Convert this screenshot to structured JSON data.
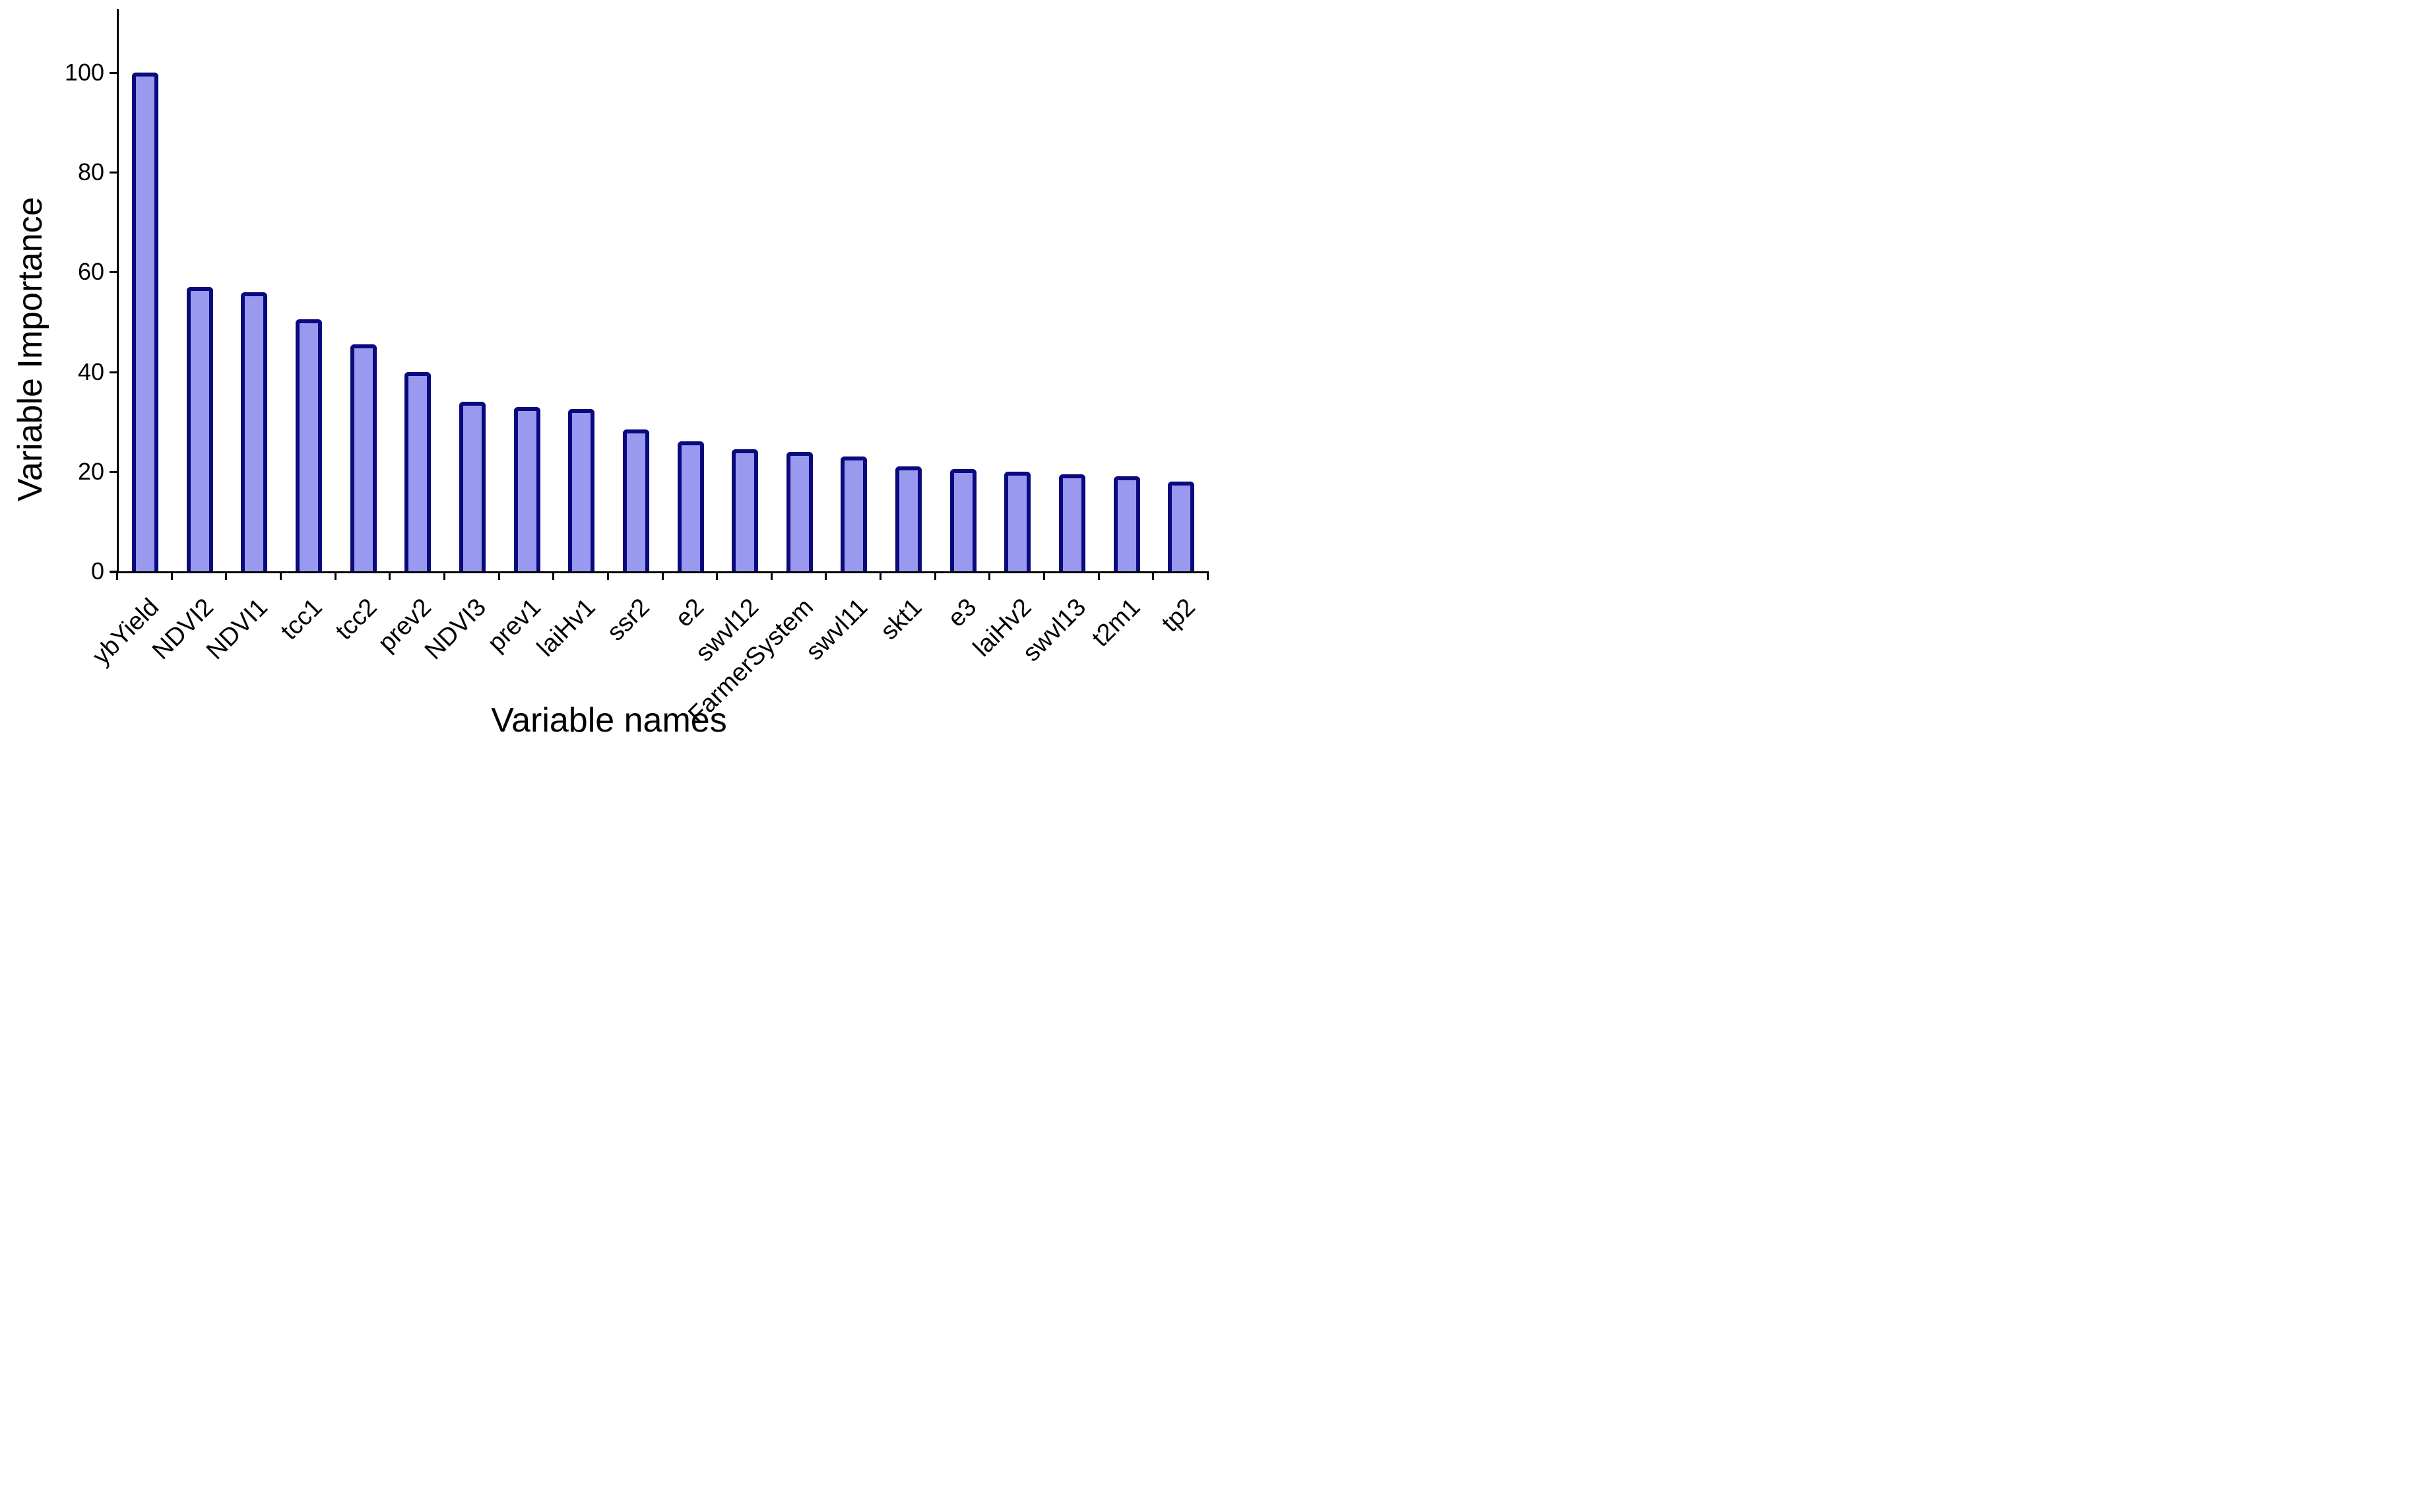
{
  "chart_data": {
    "type": "bar",
    "title": "",
    "xlabel": "Variable names",
    "ylabel": "Variable Importance",
    "categories": [
      "ybYield",
      "NDVI2",
      "NDVI1",
      "tcc1",
      "tcc2",
      "prev2",
      "NDVI3",
      "prev1",
      "laiHv1",
      "ssr2",
      "e2",
      "swvl12",
      "FarmerSystem",
      "swvl11",
      "skt1",
      "e3",
      "laiHv2",
      "swvl13",
      "t2m1",
      "tp2"
    ],
    "values": [
      100,
      57,
      56,
      50.5,
      45.5,
      40,
      34,
      33,
      32.5,
      28.5,
      26,
      24.5,
      24,
      23,
      21,
      20.5,
      20,
      19.5,
      19,
      18
    ],
    "ylim": [
      0,
      110
    ],
    "yticks": [
      0,
      20,
      40,
      60,
      80,
      100
    ],
    "grid": false,
    "legend": null,
    "x_tick_label_rotation_deg": 45,
    "bar_fill_color": "#9999F0",
    "bar_border_color": "#0A0A7E",
    "axis_color": "#000000",
    "text_color": "#000000",
    "background_color": "#FFFFFF"
  }
}
